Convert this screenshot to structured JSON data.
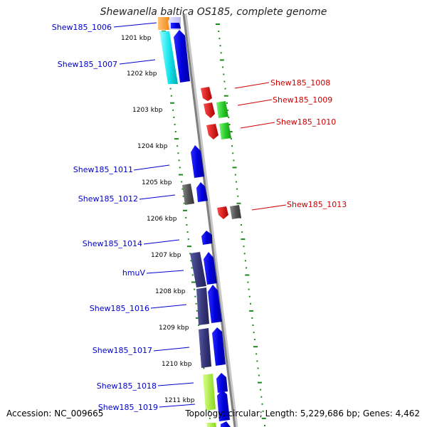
{
  "title": "Shewanella baltica OS185, complete genome",
  "accession": "Accession: NC_009665",
  "topology": "Topology: circular; Length: 5,229,686 bp; Genes: 4,462",
  "colors": {
    "backbone": "#888888",
    "tick": "#1a8a1a",
    "left_label": "#0000cc",
    "right_label": "#cc0000"
  },
  "kbp_labels": [
    "1201 kbp",
    "1202 kbp",
    "1203 kbp",
    "1204 kbp",
    "1205 kbp",
    "1206 kbp",
    "1207 kbp",
    "1208 kbp",
    "1209 kbp",
    "1210 kbp",
    "1211 kbp"
  ],
  "genes_left": [
    "Shew185_1006",
    "Shew185_1007",
    "Shew185_1011",
    "Shew185_1012",
    "Shew185_1014",
    "hmuV",
    "Shew185_1016",
    "Shew185_1017",
    "Shew185_1018",
    "Shew185_1019"
  ],
  "genes_right": [
    "Shew185_1008",
    "Shew185_1009",
    "Shew185_1010",
    "Shew185_1013"
  ]
}
